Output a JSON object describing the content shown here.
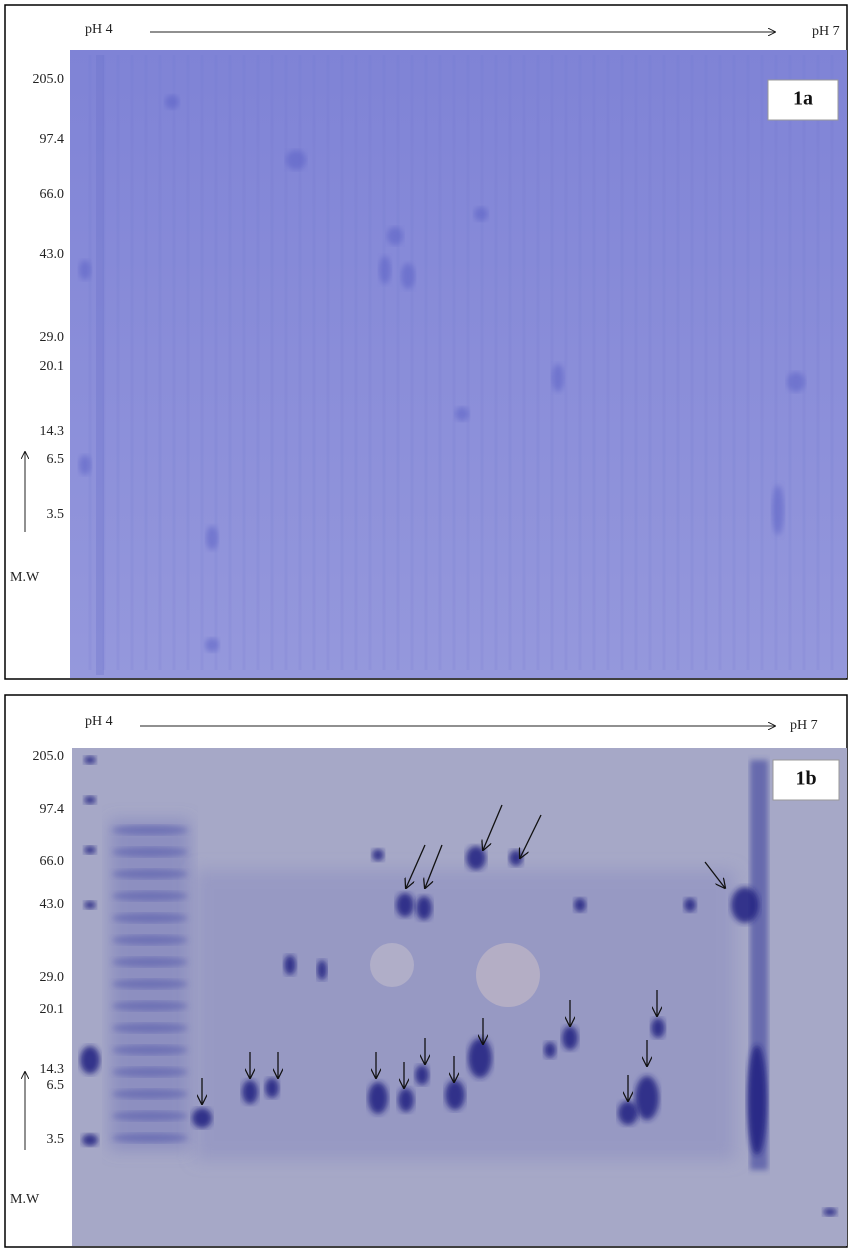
{
  "panels": [
    {
      "label": "1a",
      "ph_left": "pH 4",
      "ph_right": "pH 7",
      "mw_markers": [
        "205.0",
        "97.4",
        "66.0",
        "43.0",
        "29.0",
        "20.1",
        "14.3",
        "6.5",
        "3.5"
      ],
      "mw_axis_label": "M.W"
    },
    {
      "label": "1b",
      "ph_left": "pH 4",
      "ph_right": "pH 7",
      "mw_markers": [
        "205.0",
        "97.4",
        "66.0",
        "43.0",
        "29.0",
        "20.1",
        "14.3",
        "6.5",
        "3.5"
      ],
      "mw_axis_label": "M.W"
    }
  ]
}
